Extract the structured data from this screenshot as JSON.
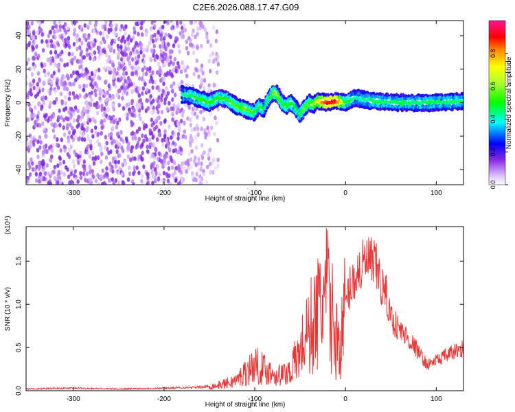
{
  "title": "C2E6.2026.088.17.47.G09",
  "chart_data": [
    {
      "type": "heatmap",
      "xlabel": "Height of straight line (km)",
      "ylabel": "Frequency (Hz)",
      "xlim": [
        -352,
        130
      ],
      "ylim": [
        -49,
        49
      ],
      "xticks": [
        -300,
        -200,
        -100,
        0,
        100
      ],
      "yticks": [
        -40,
        -20,
        0,
        20,
        40
      ],
      "colorbar": {
        "label": "Normalized spectral amplitude",
        "range": [
          0,
          1
        ],
        "ticks": [
          "0.0",
          "0.2",
          "0.4",
          "0.6",
          "0.8"
        ],
        "tick_values": [
          0,
          0.2,
          0.4,
          0.6,
          0.8
        ]
      },
      "regions": [
        {
          "description_x": [
            -352,
            -180
          ],
          "amplitude": "low (0.0-0.2), scattered across all frequencies"
        },
        {
          "description_x": [
            -180,
            -140
          ],
          "amplitude": "low, sparse"
        }
      ],
      "ridge": {
        "x": [
          -180,
          -170,
          -160,
          -150,
          -140,
          -130,
          -120,
          -110,
          -100,
          -95,
          -90,
          -85,
          -80,
          -75,
          -70,
          -65,
          -60,
          -55,
          -50,
          -45,
          -40,
          -35,
          -30,
          -20,
          -10,
          0,
          10,
          30,
          60,
          100,
          130
        ],
        "y": [
          5,
          4,
          2,
          0,
          3,
          2,
          -2,
          -4,
          -6,
          -2,
          -4,
          2,
          6,
          5,
          0,
          -2,
          0,
          -3,
          -7,
          -3,
          0,
          -1,
          1,
          0,
          1,
          0,
          3,
          1,
          0,
          0,
          1
        ],
        "amplitude": [
          0.4,
          0.45,
          0.5,
          0.5,
          0.5,
          0.5,
          0.55,
          0.55,
          0.5,
          0.5,
          0.45,
          0.45,
          0.55,
          0.6,
          0.5,
          0.5,
          0.5,
          0.5,
          0.45,
          0.55,
          0.55,
          0.6,
          0.7,
          0.9,
          0.9,
          0.5,
          0.4,
          0.45,
          0.45,
          0.45,
          0.45
        ]
      }
    },
    {
      "type": "line",
      "xlabel": "Height of straight line (km)",
      "ylabel": "SNR (10 * v/v)",
      "y_multiplier": "(x10⁴)",
      "xlim": [
        -352,
        130
      ],
      "ylim": [
        0,
        1.9
      ],
      "xticks": [
        -300,
        -200,
        -100,
        0,
        100
      ],
      "yticks": [
        "0.0",
        "0.5",
        "1.0",
        "1.5"
      ],
      "ytick_values": [
        0,
        0.5,
        1.0,
        1.5
      ],
      "color": "#ee3333",
      "series": [
        {
          "x": [
            -352,
            -300,
            -250,
            -200,
            -160,
            -140,
            -120,
            -110,
            -100,
            -90,
            -80,
            -70,
            -60,
            -50,
            -45,
            -40,
            -35,
            -30,
            -25,
            -20,
            -15,
            -10,
            -5,
            0,
            5,
            10,
            15,
            20,
            25,
            30,
            35,
            40,
            45,
            50,
            60,
            70,
            80,
            90,
            100,
            110,
            120,
            130
          ],
          "y": [
            0.02,
            0.03,
            0.02,
            0.03,
            0.04,
            0.06,
            0.12,
            0.22,
            0.3,
            0.25,
            0.2,
            0.18,
            0.25,
            0.45,
            0.6,
            0.7,
            0.8,
            0.9,
            1.05,
            1.1,
            0.85,
            0.6,
            0.55,
            1.0,
            1.2,
            1.3,
            1.4,
            1.45,
            1.5,
            1.45,
            1.4,
            1.2,
            1.1,
            0.85,
            0.7,
            0.6,
            0.45,
            0.3,
            0.35,
            0.4,
            0.45,
            0.5
          ]
        }
      ]
    }
  ]
}
